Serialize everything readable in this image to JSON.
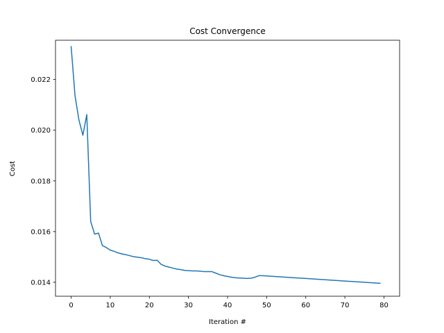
{
  "chart_data": {
    "type": "line",
    "title": "Cost Convergence",
    "xlabel": "Iteration #",
    "ylabel": "Cost",
    "xlim": [
      -4,
      84
    ],
    "ylim": [
      0.01345,
      0.02355
    ],
    "xticks": [
      0,
      10,
      20,
      30,
      40,
      50,
      60,
      70,
      80
    ],
    "xtick_labels": [
      "0",
      "10",
      "20",
      "30",
      "40",
      "50",
      "60",
      "70",
      "80"
    ],
    "yticks": [
      0.014,
      0.016,
      0.018,
      0.02,
      0.022
    ],
    "ytick_labels": [
      "0.014",
      "0.016",
      "0.018",
      "0.020",
      "0.022"
    ],
    "grid": false,
    "legend": "none",
    "series": [
      {
        "color": "#1f77b4",
        "x": [
          0,
          1,
          2,
          3,
          4,
          5,
          6,
          7,
          8,
          9,
          10,
          11,
          12,
          13,
          14,
          15,
          16,
          17,
          18,
          19,
          20,
          21,
          22,
          23,
          24,
          25,
          26,
          27,
          28,
          29,
          30,
          31,
          32,
          33,
          34,
          35,
          36,
          37,
          38,
          39,
          40,
          41,
          42,
          43,
          44,
          45,
          46,
          47,
          48,
          49,
          50,
          51,
          52,
          53,
          54,
          55,
          56,
          57,
          58,
          59,
          60,
          61,
          62,
          63,
          64,
          65,
          66,
          67,
          68,
          69,
          70,
          71,
          72,
          73,
          74,
          75,
          76,
          77,
          78,
          79
        ],
        "y": [
          0.0233,
          0.02135,
          0.0204,
          0.0198,
          0.02062,
          0.0164,
          0.0159,
          0.01594,
          0.01545,
          0.01537,
          0.01527,
          0.01522,
          0.01516,
          0.01512,
          0.01509,
          0.01505,
          0.01501,
          0.01499,
          0.01497,
          0.01493,
          0.01491,
          0.01486,
          0.01487,
          0.01471,
          0.01464,
          0.0146,
          0.01456,
          0.01452,
          0.0145,
          0.01447,
          0.01446,
          0.01445,
          0.01445,
          0.01444,
          0.01442,
          0.01442,
          0.01442,
          0.01436,
          0.0143,
          0.01426,
          0.01423,
          0.0142,
          0.01418,
          0.01417,
          0.01416,
          0.01415,
          0.01416,
          0.0142,
          0.01426,
          0.01426,
          0.01425,
          0.01424,
          0.01423,
          0.01422,
          0.01421,
          0.0142,
          0.01419,
          0.01418,
          0.01417,
          0.01416,
          0.01415,
          0.01414,
          0.01413,
          0.01412,
          0.01411,
          0.0141,
          0.01409,
          0.01408,
          0.01407,
          0.01406,
          0.01405,
          0.01404,
          0.01403,
          0.01402,
          0.01401,
          0.014,
          0.01399,
          0.01398,
          0.01397,
          0.01396
        ]
      }
    ]
  }
}
